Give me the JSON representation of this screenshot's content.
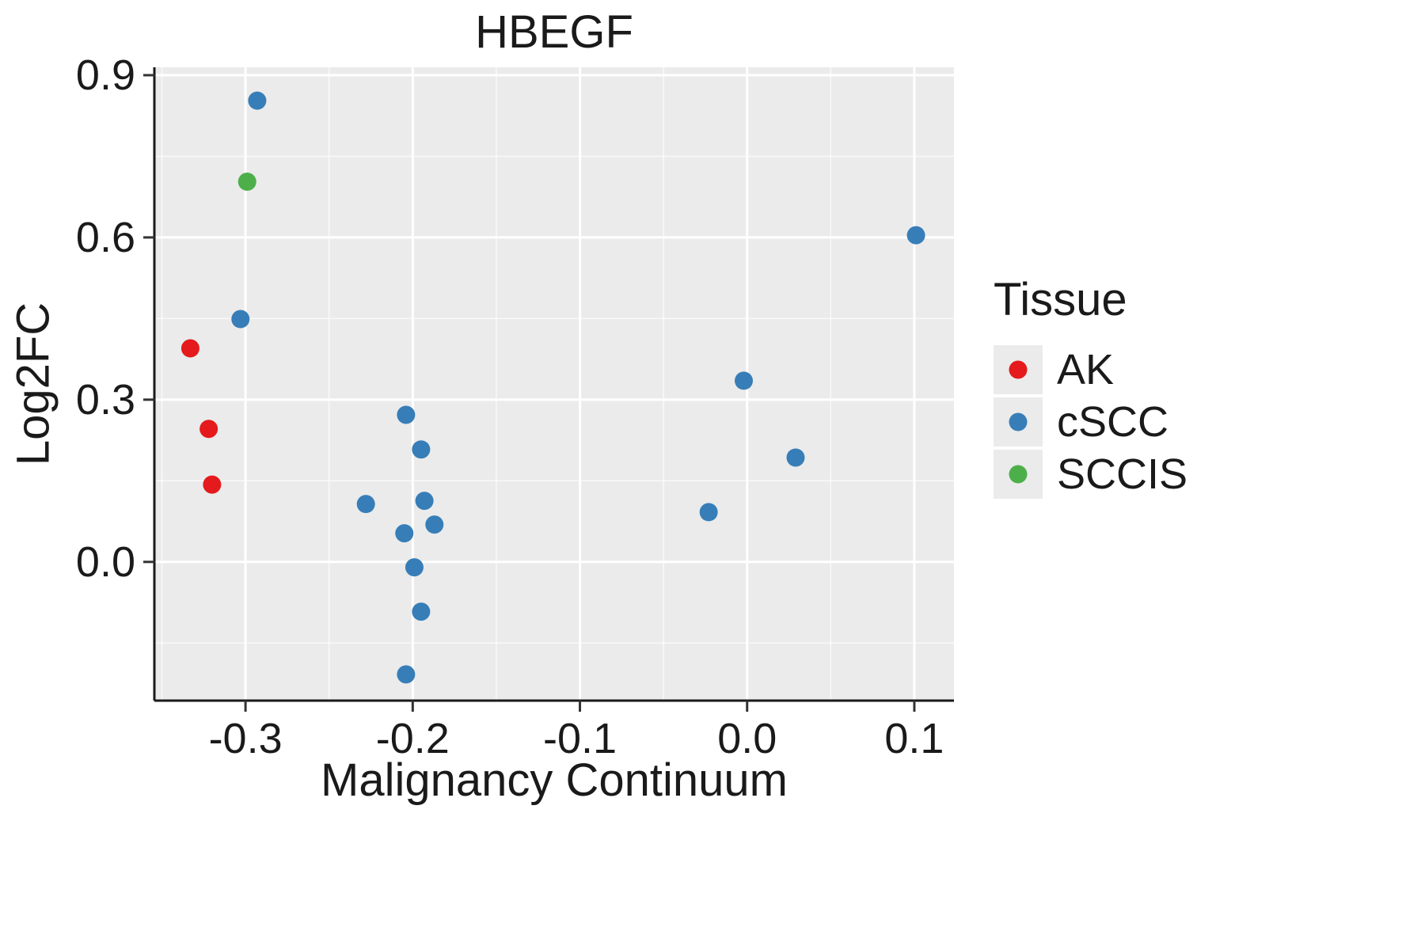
{
  "title": "HBEGF",
  "axes": {
    "x_label": "Malignancy Continuum",
    "y_label": "Log2FC",
    "x_ticks": [
      "-0.3",
      "-0.2",
      "-0.1",
      "0.0",
      "0.1"
    ],
    "y_ticks": [
      "0.0",
      "0.3",
      "0.6",
      "0.9"
    ]
  },
  "legend": {
    "title": "Tissue",
    "items": [
      {
        "label": "AK",
        "color": "#e41a1c"
      },
      {
        "label": "cSCC",
        "color": "#377eb8"
      },
      {
        "label": "SCCIS",
        "color": "#4daf4a"
      }
    ]
  },
  "colors": {
    "panel_background": "#ebebeb",
    "gridline": "#ffffff",
    "axis_line": "#1a1a1a",
    "tick_mark": "#333333"
  },
  "chart_data": {
    "type": "scatter",
    "title": "HBEGF",
    "xlabel": "Malignancy Continuum",
    "ylabel": "Log2FC",
    "xlim": [
      -0.3545,
      0.1237
    ],
    "ylim": [
      -0.2565,
      0.9146
    ],
    "x_tick_values": [
      -0.3,
      -0.2,
      -0.1,
      0.0,
      0.1
    ],
    "y_tick_values": [
      0.0,
      0.3,
      0.6,
      0.9
    ],
    "grid": true,
    "legend_position": "right",
    "series": [
      {
        "name": "AK",
        "color": "#e41a1c",
        "points": [
          [
            -0.333,
            0.395
          ],
          [
            -0.322,
            0.246
          ],
          [
            -0.32,
            0.143
          ]
        ]
      },
      {
        "name": "cSCC",
        "color": "#377eb8",
        "points": [
          [
            -0.293,
            0.853
          ],
          [
            -0.303,
            0.449
          ],
          [
            0.101,
            0.604
          ],
          [
            -0.204,
            0.272
          ],
          [
            -0.195,
            0.208
          ],
          [
            -0.228,
            0.107
          ],
          [
            -0.193,
            0.113
          ],
          [
            -0.205,
            0.053
          ],
          [
            -0.187,
            0.069
          ],
          [
            -0.199,
            -0.01
          ],
          [
            -0.195,
            -0.092
          ],
          [
            -0.204,
            -0.208
          ],
          [
            -0.002,
            0.335
          ],
          [
            0.029,
            0.193
          ],
          [
            -0.023,
            0.092
          ]
        ]
      },
      {
        "name": "SCCIS",
        "color": "#4daf4a",
        "points": [
          [
            -0.299,
            0.703
          ]
        ]
      }
    ]
  }
}
